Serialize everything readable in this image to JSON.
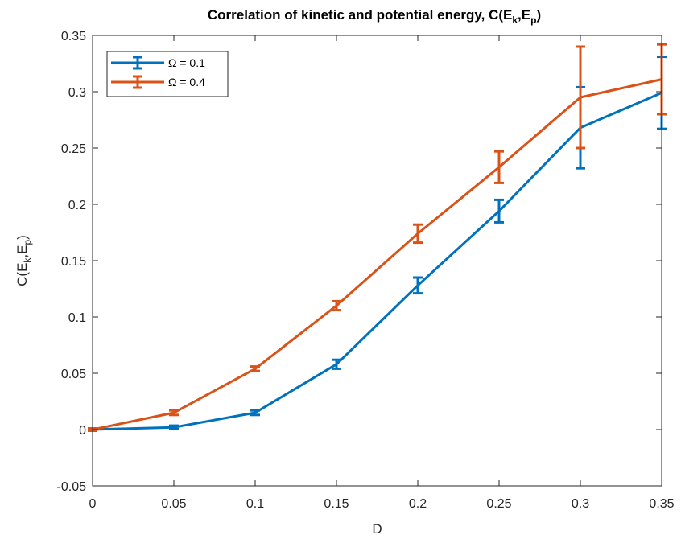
{
  "chart_data": {
    "type": "line",
    "title": {
      "main": "Correlation of kinetic and potential energy, C(E",
      "sub1": "k",
      "mid": ",E",
      "sub2": "p",
      "end": ")"
    },
    "xlabel": "D",
    "ylabel": {
      "main": "C(E",
      "sub1": "k",
      "mid": ",E",
      "sub2": "p",
      "end": ")"
    },
    "xlim": [
      0,
      0.35
    ],
    "ylim": [
      -0.05,
      0.35
    ],
    "xticks": [
      0,
      0.05,
      0.1,
      0.15,
      0.2,
      0.25,
      0.3,
      0.35
    ],
    "xtick_labels": [
      "0",
      "0.05",
      "0.1",
      "0.15",
      "0.2",
      "0.25",
      "0.3",
      "0.35"
    ],
    "yticks": [
      -0.05,
      0,
      0.05,
      0.1,
      0.15,
      0.2,
      0.25,
      0.3,
      0.35
    ],
    "ytick_labels": [
      "-0.05",
      "0",
      "0.05",
      "0.1",
      "0.15",
      "0.2",
      "0.25",
      "0.3",
      "0.35"
    ],
    "grid": false,
    "legend_position": "top-left",
    "error_bars": true,
    "x": [
      0,
      0.05,
      0.1,
      0.15,
      0.2,
      0.25,
      0.3,
      0.35
    ],
    "series": [
      {
        "name": "Ω = 0.1",
        "color": "#0072BD",
        "values": [
          0.0,
          0.002,
          0.015,
          0.058,
          0.128,
          0.194,
          0.268,
          0.299
        ],
        "errors": [
          0.001,
          0.0015,
          0.002,
          0.004,
          0.007,
          0.01,
          0.036,
          0.032
        ]
      },
      {
        "name": "Ω = 0.4",
        "color": "#D95319",
        "values": [
          0.0,
          0.015,
          0.054,
          0.11,
          0.174,
          0.233,
          0.295,
          0.311
        ],
        "errors": [
          0.001,
          0.002,
          0.002,
          0.004,
          0.008,
          0.014,
          0.045,
          0.031
        ]
      }
    ]
  }
}
